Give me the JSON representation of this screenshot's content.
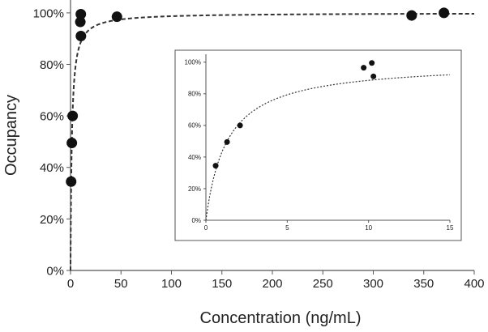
{
  "chart_data": [
    {
      "type": "scatter",
      "xlabel": "Concentration (ng/mL)",
      "ylabel": "Occupancy",
      "xlim": [
        0,
        400
      ],
      "ylim": [
        0,
        1.05
      ],
      "xticks": [
        0,
        50,
        100,
        150,
        200,
        250,
        300,
        350,
        400
      ],
      "xtick_labels": [
        "0",
        "50",
        "100",
        "150",
        "200",
        "250",
        "300",
        "350",
        "400"
      ],
      "yticks": [
        0,
        0.2,
        0.4,
        0.6,
        0.8,
        1.0
      ],
      "ytick_labels": [
        "0%",
        "20%",
        "40%",
        "60%",
        "80%",
        "100%"
      ],
      "grid": false,
      "marker_color": "#111111",
      "series": [
        {
          "x": [
            0.6,
            1.3,
            2.1,
            9.7,
            10.2,
            10.3,
            46,
            338,
            370
          ],
          "y": [
            0.345,
            0.495,
            0.6,
            0.965,
            0.995,
            0.91,
            0.985,
            0.99,
            1.0
          ]
        }
      ],
      "fit": {
        "style": "dashed",
        "model": "Emax",
        "emax": 1.0,
        "ec50": 1.3
      }
    },
    {
      "type": "scatter",
      "inset": true,
      "xlim": [
        0,
        15
      ],
      "ylim": [
        0,
        1.05
      ],
      "xticks": [
        0,
        5,
        10,
        15
      ],
      "xtick_labels": [
        "0",
        "5",
        "10",
        "15"
      ],
      "yticks": [
        0,
        0.2,
        0.4,
        0.6,
        0.8,
        1.0
      ],
      "ytick_labels": [
        "0%",
        "20%",
        "40%",
        "60%",
        "80%",
        "100%"
      ],
      "grid": false,
      "marker_color": "#111111",
      "series": [
        {
          "x": [
            0.6,
            1.3,
            2.1,
            9.7,
            10.2,
            10.3
          ],
          "y": [
            0.345,
            0.495,
            0.6,
            0.965,
            0.995,
            0.91
          ]
        }
      ],
      "fit": {
        "style": "dotted",
        "model": "Emax",
        "emax": 1.0,
        "ec50": 1.3
      }
    }
  ]
}
